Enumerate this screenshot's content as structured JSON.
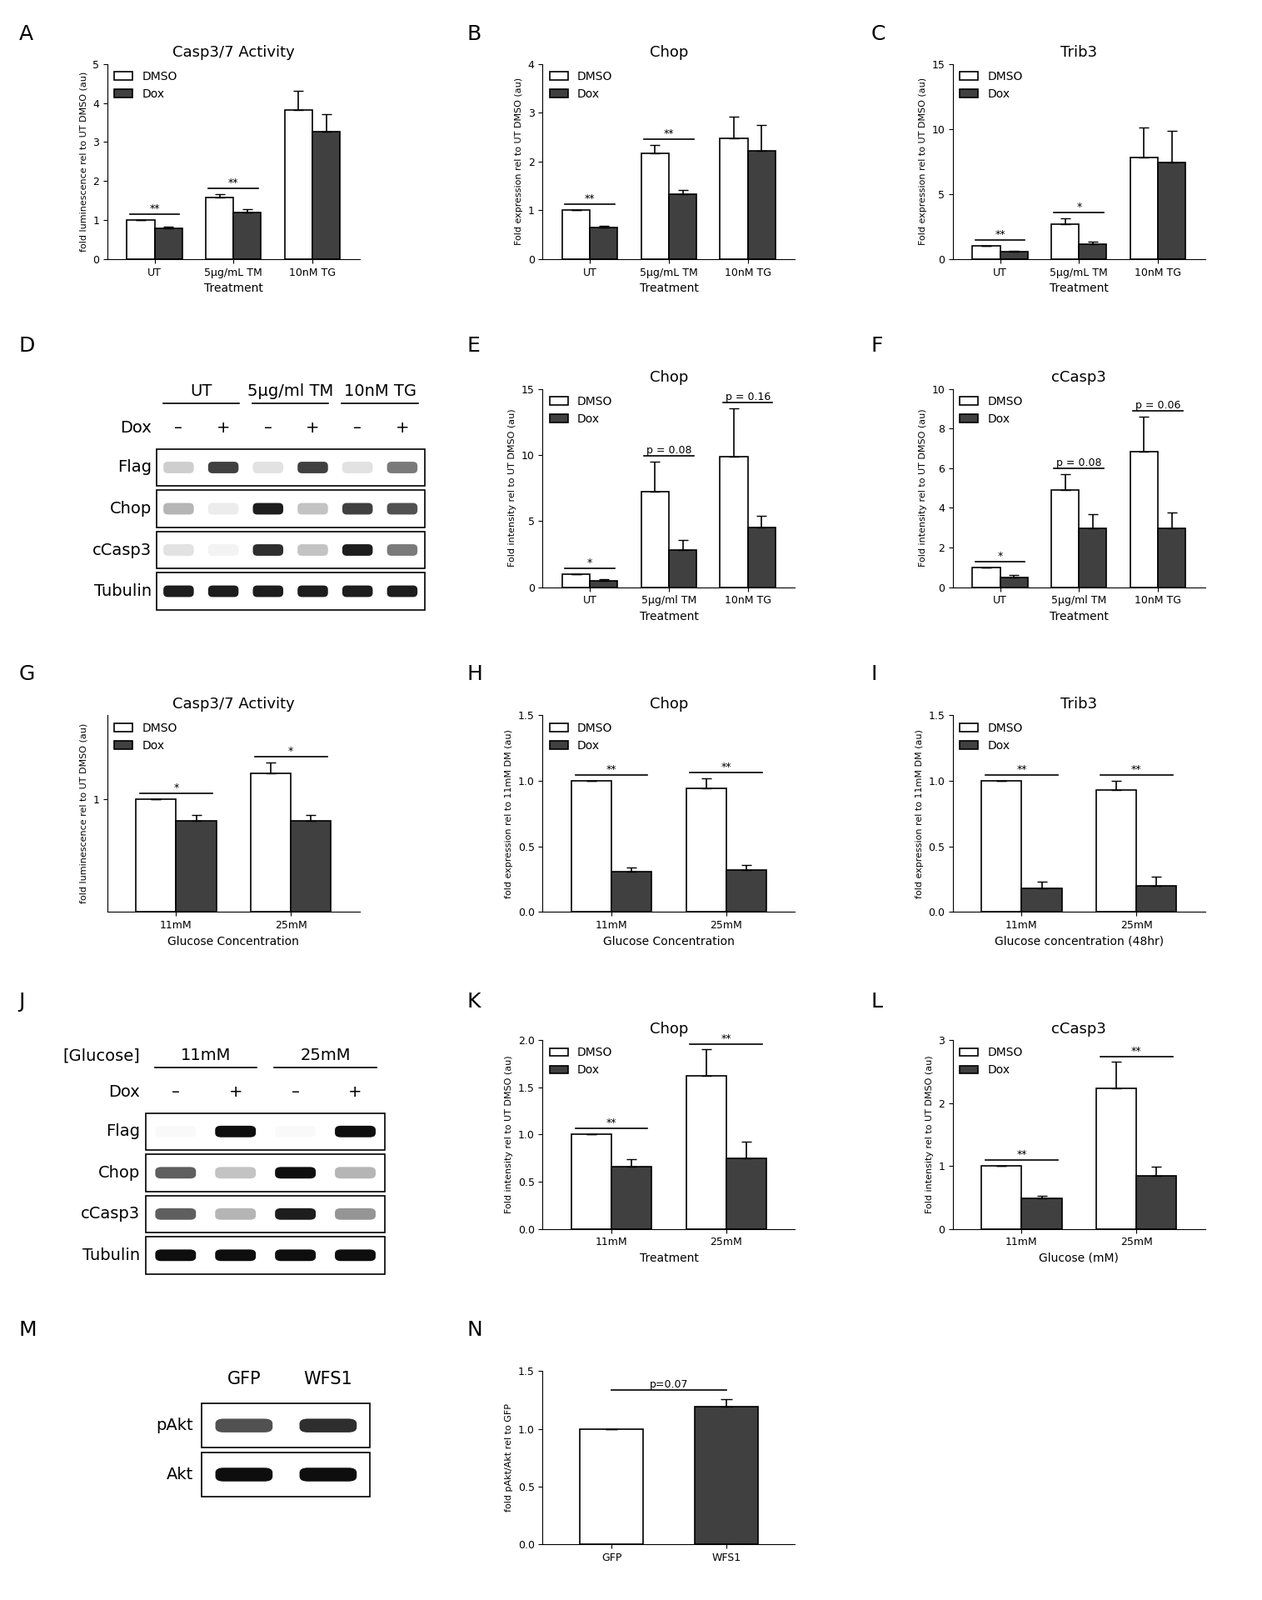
{
  "chart_data": [
    {
      "type": "bar",
      "panel_label": "A",
      "title": "Casp3/7 Activity",
      "xlabel": "Treatment",
      "ylabel": "fold luminescence rel to UT DMSO (au)",
      "categories": [
        "UT",
        "5μg/mL TM",
        "10nM TG"
      ],
      "series": [
        {
          "name": "DMSO",
          "color": "#ffffff",
          "values": [
            1.0,
            1.58,
            3.82
          ],
          "errors": [
            0.0,
            0.08,
            0.5
          ]
        },
        {
          "name": "Dox",
          "color": "#404040",
          "values": [
            0.79,
            1.2,
            3.27
          ],
          "errors": [
            0.05,
            0.08,
            0.45
          ]
        }
      ],
      "ylim": [
        0,
        5
      ],
      "yticks": [
        0,
        1,
        2,
        3,
        4,
        5
      ],
      "legend": "upper left",
      "annotations": [
        {
          "category": "UT",
          "text": "**"
        },
        {
          "category": "5μg/mL TM",
          "text": "**"
        }
      ]
    },
    {
      "type": "bar",
      "panel_label": "B",
      "title": "Chop",
      "xlabel": "Treatment",
      "ylabel": "Fold expression rel to UT DMSO (au)",
      "categories": [
        "UT",
        "5μg/mL TM",
        "10nM TG"
      ],
      "series": [
        {
          "name": "DMSO",
          "color": "#ffffff",
          "values": [
            1.0,
            2.17,
            2.47
          ],
          "errors": [
            0.0,
            0.17,
            0.45
          ]
        },
        {
          "name": "Dox",
          "color": "#404040",
          "values": [
            0.65,
            1.33,
            2.22
          ],
          "errors": [
            0.04,
            0.08,
            0.53
          ]
        }
      ],
      "ylim": [
        0,
        4
      ],
      "yticks": [
        0,
        1,
        2,
        3,
        4
      ],
      "legend": "upper left",
      "annotations": [
        {
          "category": "UT",
          "text": "**"
        },
        {
          "category": "5μg/mL TM",
          "text": "**"
        }
      ]
    },
    {
      "type": "bar",
      "panel_label": "C",
      "title": "Trib3",
      "xlabel": "Treatment",
      "ylabel": "Fold expression rel to UT DMSO (au)",
      "categories": [
        "UT",
        "5μg/mL TM",
        "10nM TG"
      ],
      "series": [
        {
          "name": "DMSO",
          "color": "#ffffff",
          "values": [
            1.0,
            2.7,
            7.8
          ],
          "errors": [
            0.0,
            0.45,
            2.35
          ]
        },
        {
          "name": "Dox",
          "color": "#404040",
          "values": [
            0.55,
            1.15,
            7.4
          ],
          "errors": [
            0.1,
            0.2,
            2.45
          ]
        }
      ],
      "ylim": [
        0,
        15
      ],
      "yticks": [
        0,
        5,
        10,
        15
      ],
      "legend": "upper left",
      "annotations": [
        {
          "category": "UT",
          "text": "**"
        },
        {
          "category": "5μg/mL TM",
          "text": "*"
        }
      ]
    },
    {
      "type": "bar",
      "panel_label": "E",
      "title": "Chop",
      "xlabel": "Treatment",
      "ylabel": "Fold intensity rel to UT DMSO (au)",
      "categories": [
        "UT",
        "5μg/ml TM",
        "10nM TG"
      ],
      "series": [
        {
          "name": "DMSO",
          "color": "#ffffff",
          "values": [
            1.0,
            7.2,
            9.9
          ],
          "errors": [
            0.0,
            2.3,
            3.6
          ]
        },
        {
          "name": "Dox",
          "color": "#404040",
          "values": [
            0.45,
            2.8,
            4.5
          ],
          "errors": [
            0.15,
            0.8,
            0.9
          ]
        }
      ],
      "ylim": [
        0,
        15
      ],
      "yticks": [
        0,
        5,
        10,
        15
      ],
      "legend": "upper left",
      "annotations": [
        {
          "category": "UT",
          "text": "*"
        },
        {
          "category": "5μg/ml TM",
          "text": "p = 0.08"
        },
        {
          "category": "10nM TG",
          "text": "p = 0.16"
        }
      ]
    },
    {
      "type": "bar",
      "panel_label": "F",
      "title": "cCasp3",
      "xlabel": "Treatment",
      "ylabel": "Fold intensity rel to UT DMSO (au)",
      "categories": [
        "UT",
        "5μg/ml TM",
        "10nM TG"
      ],
      "series": [
        {
          "name": "DMSO",
          "color": "#ffffff",
          "values": [
            1.0,
            4.9,
            6.85
          ],
          "errors": [
            0.0,
            0.8,
            1.75
          ]
        },
        {
          "name": "Dox",
          "color": "#404040",
          "values": [
            0.48,
            2.98,
            2.98
          ],
          "errors": [
            0.15,
            0.7,
            0.8
          ]
        }
      ],
      "ylim": [
        0,
        10
      ],
      "yticks": [
        0,
        2,
        4,
        6,
        8,
        10
      ],
      "legend": "upper left",
      "annotations": [
        {
          "category": "UT",
          "text": "*"
        },
        {
          "category": "5μg/ml TM",
          "text": "p = 0.08"
        },
        {
          "category": "10nM TG",
          "text": "p = 0.06"
        }
      ]
    },
    {
      "type": "bar",
      "panel_label": "G",
      "title": "Casp3/7 Activity",
      "xlabel": "Glucose Concentration",
      "ylabel": "fold luminescence rel to UT DMSO (au)",
      "categories": [
        "11mM",
        "25mM"
      ],
      "series": [
        {
          "name": "DMSO",
          "color": "#ffffff",
          "values": [
            1.0,
            1.23
          ],
          "errors": [
            0.0,
            0.1
          ]
        },
        {
          "name": "Dox",
          "color": "#404040",
          "values": [
            0.81,
            0.81
          ],
          "errors": [
            0.05,
            0.05
          ]
        }
      ],
      "ylim": [
        0,
        1.75
      ],
      "yticks": [
        1
      ],
      "legend": "upper left",
      "annotations": [
        {
          "category": "11mM",
          "text": "*"
        },
        {
          "category": "25mM",
          "text": "*"
        }
      ]
    },
    {
      "type": "bar",
      "panel_label": "H",
      "title": "Chop",
      "xlabel": "Glucose Concentration",
      "ylabel": "fold expression rel to 11mM DM (au)",
      "categories": [
        "11mM",
        "25mM"
      ],
      "series": [
        {
          "name": "DMSO",
          "color": "#ffffff",
          "values": [
            1.0,
            0.94
          ],
          "errors": [
            0.0,
            0.08
          ]
        },
        {
          "name": "Dox",
          "color": "#404040",
          "values": [
            0.31,
            0.32
          ],
          "errors": [
            0.03,
            0.04
          ]
        }
      ],
      "ylim": [
        0,
        1.5
      ],
      "yticks": [
        {
          "value": 0,
          "label": "0.0"
        },
        {
          "value": 0.5,
          "label": "0.5"
        },
        {
          "value": 1,
          "label": "1.0"
        },
        {
          "value": 1.5,
          "label": "1.5"
        }
      ],
      "legend": "upper left",
      "annotations": [
        {
          "category": "11mM",
          "text": "**"
        },
        {
          "category": "25mM",
          "text": "**"
        }
      ]
    },
    {
      "type": "bar",
      "panel_label": "I",
      "title": "Trib3",
      "xlabel": "Glucose concentration (48hr)",
      "ylabel": "fold expression rel to 11mM DM (au)",
      "categories": [
        "11mM",
        "25mM"
      ],
      "series": [
        {
          "name": "DMSO",
          "color": "#ffffff",
          "values": [
            1.0,
            0.93
          ],
          "errors": [
            0.0,
            0.07
          ]
        },
        {
          "name": "Dox",
          "color": "#404040",
          "values": [
            0.18,
            0.2
          ],
          "errors": [
            0.05,
            0.07
          ]
        }
      ],
      "ylim": [
        0,
        1.5
      ],
      "yticks": [
        {
          "value": 0,
          "label": "0.0"
        },
        {
          "value": 0.5,
          "label": "0.5"
        },
        {
          "value": 1,
          "label": "1.0"
        },
        {
          "value": 1.5,
          "label": "1.5"
        }
      ],
      "legend": "upper left",
      "annotations": [
        {
          "category": "11mM",
          "text": "**"
        },
        {
          "category": "25mM",
          "text": "**"
        }
      ]
    },
    {
      "type": "bar",
      "panel_label": "K",
      "title": "Chop",
      "xlabel": "Treatment",
      "ylabel": "Fold intensity rel to UT DMSO (au)",
      "categories": [
        "11mM",
        "25mM"
      ],
      "series": [
        {
          "name": "DMSO",
          "color": "#ffffff",
          "values": [
            1.0,
            1.62
          ],
          "errors": [
            0.0,
            0.28
          ]
        },
        {
          "name": "Dox",
          "color": "#404040",
          "values": [
            0.66,
            0.75
          ],
          "errors": [
            0.08,
            0.17
          ]
        }
      ],
      "ylim": [
        0,
        2
      ],
      "yticks": [
        {
          "value": 0,
          "label": "0.0"
        },
        {
          "value": 0.5,
          "label": "0.5"
        },
        {
          "value": 1,
          "label": "1.0"
        },
        {
          "value": 1.5,
          "label": "1.5"
        },
        {
          "value": 2,
          "label": "2.0"
        }
      ],
      "legend": "upper left",
      "annotations": [
        {
          "category": "11mM",
          "text": "**"
        },
        {
          "category": "25mM",
          "text": "**"
        }
      ]
    },
    {
      "type": "bar",
      "panel_label": "L",
      "title": "cCasp3",
      "xlabel": "Glucose (mM)",
      "ylabel": "Fold intensity rel to UT DMSO (au)",
      "categories": [
        "11mM",
        "25mM"
      ],
      "series": [
        {
          "name": "DMSO",
          "color": "#ffffff",
          "values": [
            1.0,
            2.23
          ],
          "errors": [
            0.0,
            0.42
          ]
        },
        {
          "name": "Dox",
          "color": "#404040",
          "values": [
            0.48,
            0.84
          ],
          "errors": [
            0.05,
            0.15
          ]
        }
      ],
      "ylim": [
        0,
        3
      ],
      "yticks": [
        0,
        1,
        2,
        3
      ],
      "legend": "upper left",
      "annotations": [
        {
          "category": "11mM",
          "text": "**"
        },
        {
          "category": "25mM",
          "text": "**"
        }
      ]
    },
    {
      "type": "bar",
      "panel_label": "N",
      "ylabel": "fold pAkt/Akt rel to GFP",
      "categories": [
        "GFP",
        "WFS1"
      ],
      "values": [
        1.0,
        1.19
      ],
      "errors": [
        0.0,
        0.07
      ],
      "colors": [
        "#ffffff",
        "#404040"
      ],
      "ylim": [
        0,
        1.5
      ],
      "yticks": [
        {
          "value": 0,
          "label": "0.0"
        },
        {
          "value": 0.5,
          "label": "0.5"
        },
        {
          "value": 1,
          "label": "1.0"
        },
        {
          "value": 1.5,
          "label": "1.5"
        }
      ],
      "annotations": [
        {
          "categories": [
            "GFP",
            "WFS1"
          ],
          "text": "p=0.07"
        }
      ]
    }
  ],
  "blots": [
    {
      "panel_label": "D",
      "groups": [
        "UT",
        "5μg/ml TM",
        "10nM TG"
      ],
      "lane_row_label": "Dox",
      "lanes": [
        "–",
        "+",
        "–",
        "+",
        "–",
        "+"
      ],
      "rows": [
        {
          "name": "Flag",
          "band_intensity": [
            0.3,
            0.8,
            0.2,
            0.8,
            0.2,
            0.6
          ]
        },
        {
          "name": "Chop",
          "band_intensity": [
            0.4,
            0.15,
            0.9,
            0.35,
            0.8,
            0.75
          ]
        },
        {
          "name": "cCasp3",
          "band_intensity": [
            0.2,
            0.1,
            0.85,
            0.35,
            0.9,
            0.6
          ]
        },
        {
          "name": "Tubulin",
          "band_intensity": [
            0.9,
            0.9,
            0.9,
            0.9,
            0.9,
            0.9
          ]
        }
      ]
    },
    {
      "panel_label": "J",
      "group_title": "[Glucose]",
      "groups": [
        "11mM",
        "25mM"
      ],
      "lane_row_label": "Dox",
      "lanes": [
        "–",
        "+",
        "–",
        "+"
      ],
      "rows": [
        {
          "name": "Flag",
          "band_intensity": [
            0.05,
            0.95,
            0.05,
            0.95
          ]
        },
        {
          "name": "Chop",
          "band_intensity": [
            0.7,
            0.35,
            0.95,
            0.4
          ]
        },
        {
          "name": "cCasp3",
          "band_intensity": [
            0.7,
            0.4,
            0.9,
            0.5
          ]
        },
        {
          "name": "Tubulin",
          "band_intensity": [
            0.95,
            0.95,
            0.95,
            0.95
          ]
        }
      ]
    },
    {
      "panel_label": "M",
      "lanes": [
        "GFP",
        "WFS1"
      ],
      "rows": [
        {
          "name": "pAkt",
          "band_intensity": [
            0.75,
            0.85
          ]
        },
        {
          "name": "Akt",
          "band_intensity": [
            0.95,
            0.95
          ]
        }
      ]
    }
  ]
}
